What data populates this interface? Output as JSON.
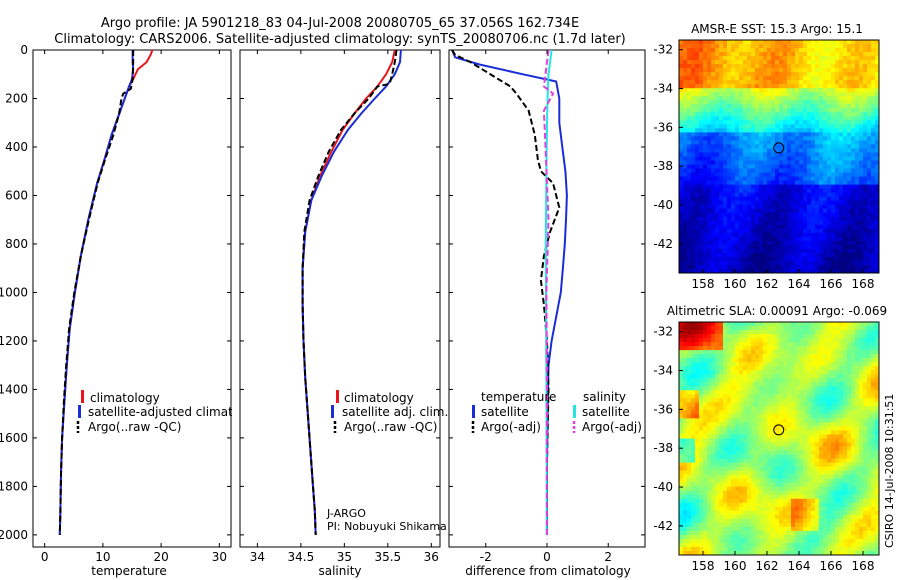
{
  "header": {
    "line1": "Argo profile: JA 5901218_83 04-Jul-2008 20080705_65 37.056S 162.734E",
    "line2": "Climatology: CARS2006. Satellite-adjusted climatology: synTS_20080706.nc (1.7d later)"
  },
  "colors": {
    "red": "#e8161b",
    "blue": "#1a2bd8",
    "black": "#000000",
    "cyan": "#22e6e6",
    "magenta": "#e040e0"
  },
  "chart_data": [
    {
      "type": "line",
      "name": "temperature",
      "xlabel": "temperature",
      "ylabel": "",
      "xlim": [
        -2,
        32
      ],
      "ylim": [
        2050,
        0
      ],
      "xticks": [
        "0",
        "10",
        "20",
        "30"
      ],
      "xtick_values": [
        0,
        10,
        20,
        30
      ],
      "yticks": [
        "0",
        "200",
        "400",
        "600",
        "800",
        "1000",
        "1200",
        "1400",
        "1600",
        "1800",
        "2000"
      ],
      "ytick_values": [
        0,
        200,
        400,
        600,
        800,
        1000,
        1200,
        1400,
        1600,
        1800,
        2000
      ],
      "legend": [
        "climatology",
        "satellite-adjusted climatology",
        "Argo(..raw -QC)"
      ],
      "series": [
        {
          "name": "climatology",
          "color": "red",
          "style": "solid",
          "x": [
            18.5,
            18.2,
            17.5,
            16.0,
            15.2,
            14.5,
            13.0,
            11.5,
            10.3,
            9.0,
            7.5,
            6.2,
            5.2,
            4.3,
            3.8,
            3.4,
            3.0,
            2.8,
            2.7,
            2.6
          ],
          "y": [
            0,
            20,
            50,
            80,
            120,
            150,
            250,
            350,
            450,
            550,
            700,
            850,
            1000,
            1150,
            1300,
            1450,
            1600,
            1750,
            1900,
            2000
          ]
        },
        {
          "name": "satellite-adjusted climatology",
          "color": "blue",
          "style": "solid",
          "x": [
            15.1,
            15.1,
            15.1,
            15.2,
            15.0,
            14.5,
            13.0,
            11.5,
            10.3,
            9.0,
            7.5,
            6.2,
            5.2,
            4.3,
            3.8,
            3.4,
            3.0,
            2.8,
            2.7,
            2.6
          ],
          "y": [
            0,
            20,
            50,
            80,
            120,
            150,
            250,
            350,
            450,
            550,
            700,
            850,
            1000,
            1150,
            1300,
            1450,
            1600,
            1750,
            1900,
            2000
          ]
        },
        {
          "name": "Argo(..raw -QC)",
          "color": "black",
          "style": "dash",
          "x": [
            15.2,
            15.2,
            15.1,
            14.8,
            13.5,
            13.2,
            12.8,
            11.8,
            10.4,
            9.1,
            7.6,
            6.2,
            5.1,
            4.2,
            3.7,
            3.3,
            3.0,
            2.8,
            2.7,
            2.6
          ],
          "y": [
            0,
            50,
            120,
            160,
            180,
            200,
            260,
            350,
            450,
            550,
            700,
            850,
            1000,
            1150,
            1300,
            1450,
            1600,
            1750,
            1900,
            2000
          ]
        }
      ]
    },
    {
      "type": "line",
      "name": "salinity",
      "xlabel": "salinity",
      "xlim": [
        33.8,
        36.1
      ],
      "ylim": [
        2050,
        0
      ],
      "xticks": [
        "34",
        "34.5",
        "35",
        "35.5",
        "36"
      ],
      "xtick_values": [
        34,
        34.5,
        35,
        35.5,
        36
      ],
      "legend": [
        "climatology",
        "satellite adj. clim.",
        "Argo(..raw -QC)"
      ],
      "annotation": [
        "J-ARGO",
        "PI: Nobuyuki Shikama"
      ],
      "series": [
        {
          "name": "climatology",
          "color": "red",
          "style": "solid",
          "x": [
            35.58,
            35.55,
            35.48,
            35.38,
            35.25,
            35.12,
            34.98,
            34.85,
            34.72,
            34.62,
            34.55,
            34.52,
            34.52,
            34.53,
            34.55,
            34.58,
            34.61,
            34.64,
            34.66,
            34.67
          ],
          "y": [
            0,
            50,
            100,
            150,
            200,
            260,
            330,
            420,
            520,
            620,
            750,
            900,
            1050,
            1200,
            1350,
            1500,
            1650,
            1800,
            1900,
            2000
          ]
        },
        {
          "name": "satellite adj. clim.",
          "color": "blue",
          "style": "solid",
          "x": [
            35.65,
            35.64,
            35.58,
            35.48,
            35.35,
            35.2,
            35.04,
            34.88,
            34.74,
            34.62,
            34.55,
            34.52,
            34.52,
            34.53,
            34.55,
            34.58,
            34.61,
            34.64,
            34.66,
            34.67
          ],
          "y": [
            0,
            50,
            100,
            150,
            200,
            260,
            330,
            420,
            520,
            620,
            750,
            900,
            1050,
            1200,
            1350,
            1500,
            1650,
            1800,
            1900,
            2000
          ]
        },
        {
          "name": "Argo(..raw -QC)",
          "color": "black",
          "style": "dash",
          "x": [
            35.6,
            35.58,
            35.55,
            35.52,
            35.38,
            35.28,
            35.12,
            34.96,
            34.82,
            34.7,
            34.6,
            34.54,
            34.52,
            34.52,
            34.53,
            34.55,
            34.58,
            34.61,
            34.64,
            34.66,
            34.67
          ],
          "y": [
            0,
            50,
            100,
            140,
            150,
            200,
            260,
            330,
            420,
            520,
            620,
            750,
            900,
            1050,
            1200,
            1350,
            1500,
            1650,
            1800,
            1900,
            2000
          ]
        }
      ]
    },
    {
      "type": "line",
      "name": "difference from climatology",
      "xlabel": "difference from climatology",
      "xlim": [
        -3.2,
        3.2
      ],
      "ylim": [
        2050,
        0
      ],
      "xticks": [
        "-2",
        "0",
        "2"
      ],
      "xtick_values": [
        -2,
        0,
        2
      ],
      "legend_left_title": "temperature",
      "legend_right_title": "salinity",
      "legend_left": [
        "satellite",
        "Argo(-adj)"
      ],
      "legend_right": [
        "satellite",
        "Argo(-adj)"
      ],
      "series": [
        {
          "name": "temperature satellite",
          "color": "blue",
          "style": "solid",
          "x": [
            -3.1,
            -3.0,
            -2.2,
            -0.8,
            0.3,
            0.4,
            0.4,
            0.5,
            0.6,
            0.65,
            0.62,
            0.58,
            0.52,
            0.45,
            0.3,
            0.15,
            0.05,
            0.02,
            0,
            0
          ],
          "y": [
            0,
            30,
            60,
            100,
            130,
            200,
            300,
            400,
            500,
            600,
            700,
            800,
            900,
            1000,
            1100,
            1200,
            1300,
            1500,
            1700,
            2000
          ]
        },
        {
          "name": "temperature Argo(-adj)",
          "color": "black",
          "style": "dash",
          "x": [
            -3.1,
            -3.0,
            -2.5,
            -1.2,
            -1.0,
            -0.6,
            -0.4,
            -0.3,
            -0.2,
            0.2,
            0.4,
            0.1,
            -0.1,
            -0.2,
            -0.1,
            0.0,
            0.05,
            0,
            0
          ],
          "y": [
            0,
            20,
            50,
            150,
            180,
            250,
            350,
            450,
            500,
            550,
            650,
            750,
            850,
            950,
            1050,
            1200,
            1400,
            1700,
            2000
          ]
        },
        {
          "name": "salinity satellite",
          "color": "cyan",
          "style": "solid",
          "x": [
            0.15,
            0.1,
            0.05,
            0.02,
            0.0,
            -0.02,
            -0.04,
            -0.03,
            -0.02,
            -0.01,
            -0.01
          ],
          "y": [
            0,
            50,
            100,
            200,
            300,
            500,
            800,
            1100,
            1400,
            1700,
            2000
          ]
        },
        {
          "name": "salinity Argo(-adj)",
          "color": "magenta",
          "style": "dash",
          "x": [
            0.05,
            0.0,
            -0.1,
            0.2,
            -0.1,
            -0.05,
            0.05,
            -0.02,
            0.0,
            -0.01,
            0.0
          ],
          "y": [
            0,
            50,
            150,
            180,
            250,
            400,
            700,
            1000,
            1400,
            1700,
            2000
          ]
        }
      ]
    },
    {
      "type": "heatmap",
      "name": "sst-map",
      "title": "AMSR-E SST: 15.3 Argo: 15.1",
      "xlim": [
        156.5,
        169
      ],
      "ylim": [
        -43.5,
        -31.5
      ],
      "xticks": [
        "158",
        "160",
        "162",
        "164",
        "166",
        "168"
      ],
      "xtick_values": [
        158,
        160,
        162,
        164,
        166,
        168
      ],
      "yticks": [
        "-32",
        "-34",
        "-36",
        "-38",
        "-40",
        "-42"
      ],
      "ytick_values": [
        -32,
        -34,
        -36,
        -38,
        -40,
        -42
      ],
      "marker": {
        "lon": 162.734,
        "lat": -37.056
      }
    },
    {
      "type": "heatmap",
      "name": "sla-map",
      "title": "Altimetric SLA: 0.00091 Argo: -0.069",
      "xlim": [
        156.5,
        169
      ],
      "ylim": [
        -43.5,
        -31.5
      ],
      "xticks": [
        "158",
        "160",
        "162",
        "164",
        "166",
        "168"
      ],
      "xtick_values": [
        158,
        160,
        162,
        164,
        166,
        168
      ],
      "yticks": [
        "-32",
        "-34",
        "-36",
        "-38",
        "-40",
        "-42"
      ],
      "ytick_values": [
        -32,
        -34,
        -36,
        -38,
        -40,
        -42
      ],
      "marker": {
        "lon": 162.734,
        "lat": -37.056
      }
    }
  ],
  "footer": {
    "stamp": "CSIRO 14-Jul-2008 10:31:51"
  }
}
